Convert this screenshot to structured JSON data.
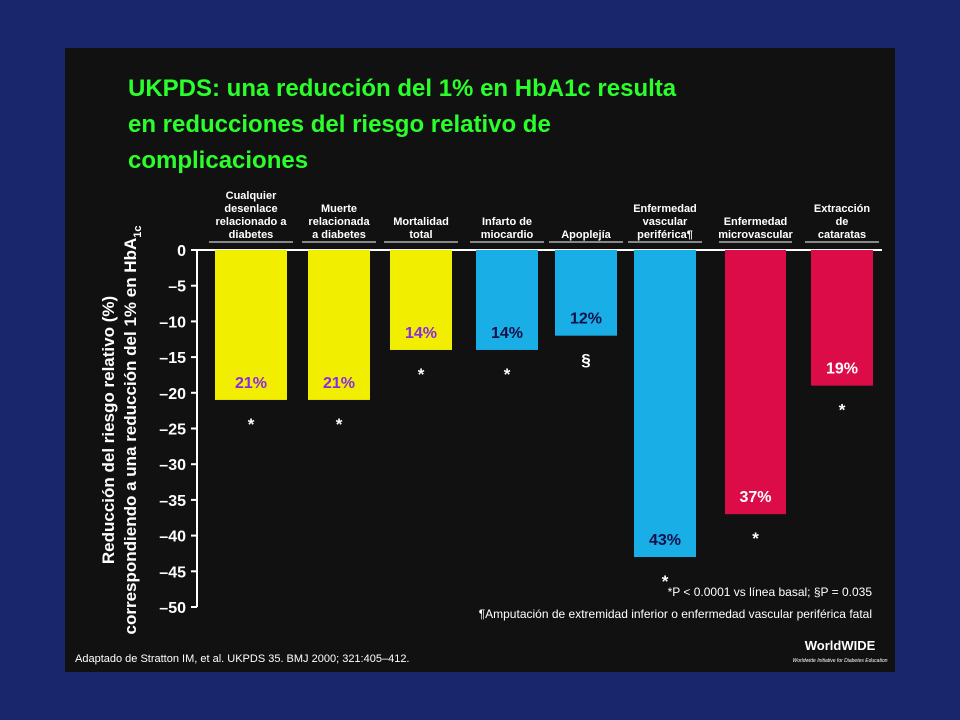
{
  "chart_data": {
    "type": "bar",
    "title": [
      "UKPDS: una reducción del 1% en HbA1c resulta",
      "en reducciones del riesgo relativo de",
      "complicaciones"
    ],
    "y_label": [
      "Reducción del riesgo relativo (%)",
      [
        "correspondiendo a una reducción del 1% en HbA",
        "1c"
      ]
    ],
    "categories": [
      [
        "Cualquier",
        "desenlace",
        "relacionado a",
        "diabetes"
      ],
      [
        "Muerte",
        "relacionada",
        "a diabetes"
      ],
      [
        "Mortalidad",
        "total"
      ],
      [
        "Infarto de",
        "miocardio"
      ],
      [
        "Apoplejía"
      ],
      [
        "Enfermedad",
        "vascular",
        "periférica¶"
      ],
      [
        "Enfermedad",
        "microvascular"
      ],
      [
        "Extracción",
        "de",
        "cataratas"
      ]
    ],
    "values": [
      -21,
      -21,
      -14,
      -14,
      -12,
      -43,
      -37,
      -19
    ],
    "value_labels": [
      "21%",
      "21%",
      "14%",
      "14%",
      "12%",
      "43%",
      "37%",
      "19%"
    ],
    "markers": [
      "*",
      "*",
      "*",
      "*",
      "§",
      "*",
      "*",
      "*"
    ],
    "colors": [
      "#f2ee00",
      "#f2ee00",
      "#f2ee00",
      "#19aee6",
      "#19aee6",
      "#19aee6",
      "#dc0c48",
      "#dc0c48"
    ],
    "label_colors": [
      "#8a2be2",
      "#8a2be2",
      "#8a2be2",
      "#10104a",
      "#10104a",
      "#10104a",
      "#ffffff",
      "#ffffff"
    ],
    "ylim": [
      -50,
      0
    ],
    "yticks": [
      0,
      {
        "value": -5,
        "label": "–5"
      },
      {
        "value": -10,
        "label": "–10"
      },
      {
        "value": -15,
        "label": "–15"
      },
      {
        "value": -20,
        "label": "–20"
      },
      {
        "value": -25,
        "label": "–25"
      },
      {
        "value": -30,
        "label": "–30"
      },
      {
        "value": -35,
        "label": "–35"
      },
      {
        "value": -40,
        "label": "–40"
      },
      {
        "value": -45,
        "label": "–45"
      },
      {
        "value": -50,
        "label": "–50"
      }
    ],
    "footnotes": [
      "*P < 0.0001 vs línea basal; §P = 0.035",
      "¶Amputación de extremidad inferior o enfermedad vascular periférica fatal"
    ],
    "source": "Adaptado de Stratton IM, et al. UKPDS 35. BMJ 2000; 321:405–412.",
    "logo": [
      "WorldWIDE",
      "Worldwide Initiative for Diabetes Education"
    ]
  }
}
